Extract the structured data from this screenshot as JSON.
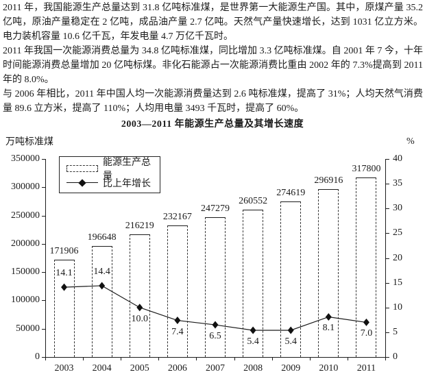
{
  "document": {
    "paragraphs": [
      "2011 年，我国能源生产总量达到 31.8 亿吨标准煤，是世界第一大能源生产国。其中，原煤产量 35.2 亿吨，原油产量稳定在 2 亿吨，成品油产量 2.7 亿吨。天然气产量快速增长，达到 1031 亿立方米。电力装机容量 10.6 亿千瓦，年发电量 4.7 万亿千瓦时。",
      "2011 年我国一次能源消费总量为 34.8 亿吨标准煤，同比增加 3.3 亿吨标准煤。自 2001 年 7 今，十年时间能源消费总量增加 20 亿吨标煤。非化石能源占一次能源消费比重由 2002 年的 7.3%提高到 2011 年的 8.0%。",
      "与 2006 年相比，2011 年中国人均一次能源消费量达到 2.6 吨标准煤，提高了 31%；人均天然气消费量 89.6 立方米，提高了 110%；人均用电量 3493 千瓦时，提高了 60%。"
    ]
  },
  "chart_data": {
    "type": "bar",
    "title": "2003—2011 年能源生产总量及其增长速度",
    "ylabel_left": "万吨标准煤",
    "ylabel_right": "%",
    "categories": [
      "2003",
      "2004",
      "2005",
      "2006",
      "2007",
      "2008",
      "2009",
      "2010",
      "2011"
    ],
    "series": [
      {
        "name": "能源生产总量",
        "type": "bar",
        "axis": "left",
        "values": [
          171906,
          196648,
          216219,
          232167,
          247279,
          260552,
          274619,
          296916,
          317800
        ],
        "labels": [
          "171906",
          "196648",
          "216219",
          "232167",
          "247279",
          "260552",
          "274619",
          "296916",
          "317800"
        ]
      },
      {
        "name": "比上年增长",
        "type": "line",
        "axis": "right",
        "values": [
          14.1,
          14.4,
          10.0,
          7.4,
          6.5,
          5.4,
          5.4,
          8.1,
          7.0
        ],
        "labels": [
          "14.1",
          "14.4",
          "10.0",
          "7.4",
          "6.5",
          "5.4",
          "5.4",
          "8.1",
          "7.0"
        ],
        "label_positions": [
          "above",
          "above",
          "below",
          "below",
          "below",
          "below",
          "below",
          "below",
          "below"
        ]
      }
    ],
    "y_left": {
      "min": 0,
      "max": 350000,
      "step": 50000,
      "ticks": [
        0,
        50000,
        100000,
        150000,
        200000,
        250000,
        300000,
        350000
      ]
    },
    "y_right": {
      "min": 0,
      "max": 40,
      "step": 5,
      "ticks": [
        0,
        5,
        10,
        15,
        20,
        25,
        30,
        35,
        40
      ]
    },
    "legend": {
      "position": "top-left-inside",
      "entries": [
        "能源生产总量",
        "比上年增长"
      ]
    },
    "grid": false,
    "colors": {
      "ink": "#1a1a1a",
      "bar_fill": "#ffffff"
    }
  }
}
